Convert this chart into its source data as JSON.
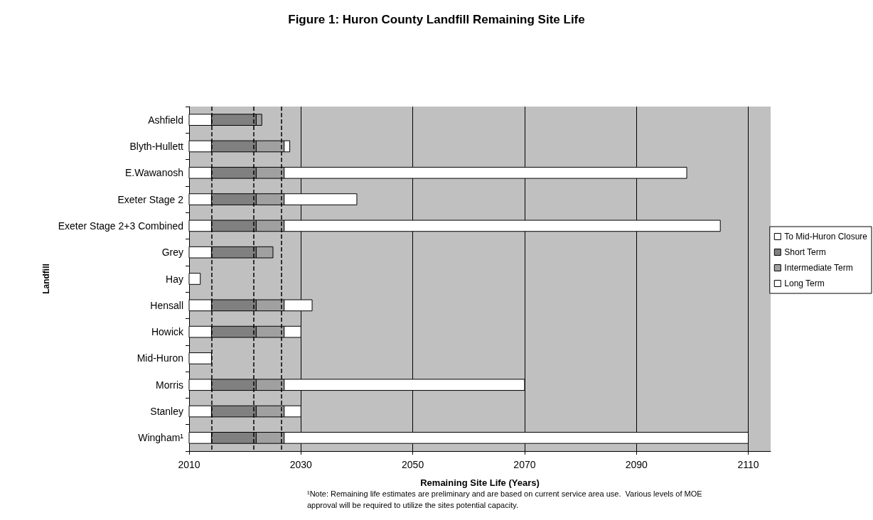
{
  "chart_data": {
    "type": "bar",
    "orientation": "horizontal",
    "title": "Figure 1: Huron County Landfill Remaining Site Life",
    "xlabel": "Remaining Site Life (Years)",
    "ylabel": "Landfill",
    "categories": [
      "Ashfield",
      "Blyth-Hullett",
      "E.Wawanosh",
      "Exeter Stage 2",
      "Exeter Stage 2+3 Combined",
      "Grey",
      "Hay",
      "Hensall",
      "Howick",
      "Mid-Huron",
      "Morris",
      "Stanley",
      "Wingham¹"
    ],
    "series": [
      {
        "name": "To Mid-Huron Closure",
        "color": "#ffffff",
        "base": [
          2010,
          2010,
          2010,
          2010,
          2010,
          2010,
          2010,
          2010,
          2010,
          2010,
          2010,
          2010,
          2010
        ],
        "values": [
          4,
          4,
          4,
          4,
          4,
          4,
          2,
          4,
          4,
          4,
          4,
          4,
          4
        ]
      },
      {
        "name": "Short Term",
        "color": "#808080",
        "base": [
          2014,
          2014,
          2014,
          2014,
          2014,
          2014,
          null,
          2014,
          2014,
          null,
          2014,
          2014,
          2014
        ],
        "values": [
          8,
          8,
          8,
          8,
          8,
          8,
          null,
          8,
          8,
          null,
          8,
          8,
          8
        ]
      },
      {
        "name": "Intermediate Term",
        "color": "#a0a0a0",
        "base": [
          2022,
          2022,
          2022,
          2022,
          2022,
          2022,
          null,
          2022,
          2022,
          null,
          2022,
          2022,
          2022
        ],
        "values": [
          1,
          5,
          5,
          5,
          5,
          3,
          null,
          5,
          5,
          null,
          5,
          5,
          5
        ]
      },
      {
        "name": "Long Term",
        "color": "#ffffff",
        "base": [
          null,
          2027,
          2027,
          2027,
          2027,
          null,
          null,
          2027,
          2027,
          null,
          2027,
          2027,
          2027
        ],
        "values": [
          null,
          1,
          72,
          13,
          78,
          null,
          null,
          5,
          3,
          null,
          43,
          3,
          83
        ]
      }
    ],
    "xlim": [
      2010,
      2114
    ],
    "xticks": [
      2010,
      2030,
      2050,
      2070,
      2090,
      2110
    ],
    "grid": "x",
    "legend": "right",
    "ref_lines": [
      {
        "axis": "x",
        "value": 2014,
        "line_style": "dashed"
      },
      {
        "axis": "x",
        "value": 2021.5,
        "line_style": "dashed"
      },
      {
        "axis": "x",
        "value": 2026.5,
        "line_style": "dashed"
      }
    ],
    "annotations": [
      "¹Note: Remaining life estimates are preliminary and are based on current service area use.  Various levels of MOE approval will be required to utilize the sites potential capacity."
    ]
  }
}
